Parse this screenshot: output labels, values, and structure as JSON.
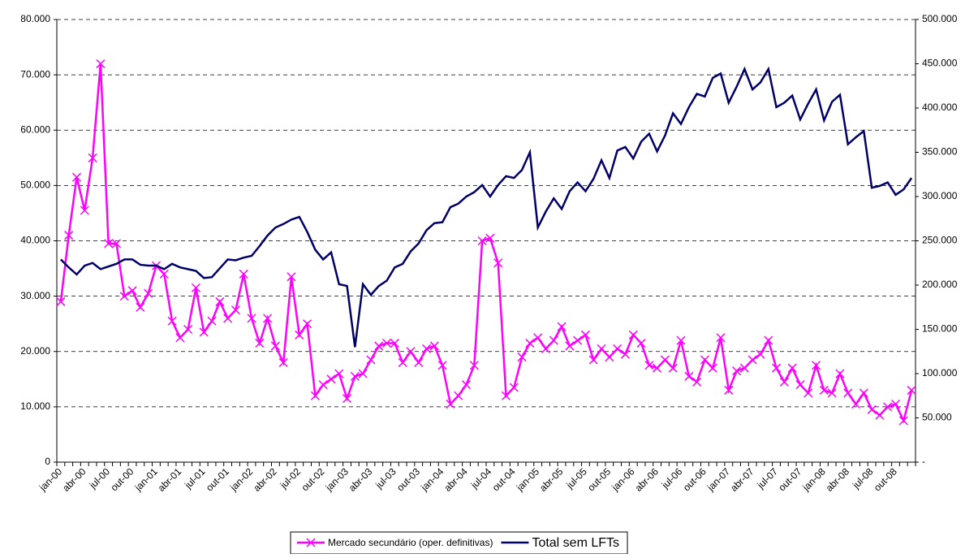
{
  "chart_data": {
    "type": "line",
    "categories": [
      "jan-00",
      null,
      null,
      "abr-00",
      null,
      null,
      "jul-00",
      null,
      null,
      "out-00",
      null,
      null,
      "jan-01",
      null,
      null,
      "abr-01",
      null,
      null,
      "jul-01",
      null,
      null,
      "out-01",
      null,
      null,
      "jan-02",
      null,
      null,
      "abr-02",
      null,
      null,
      "jul-02",
      null,
      null,
      "out-02",
      null,
      null,
      "jan-03",
      null,
      null,
      "abr-03",
      null,
      null,
      "jul-03",
      null,
      null,
      "out-03",
      null,
      null,
      "jan-04",
      null,
      null,
      "abr-04",
      null,
      null,
      "jul-04",
      null,
      null,
      "out-04",
      null,
      null,
      "jan-05",
      null,
      null,
      "abr-05",
      null,
      null,
      "jul-05",
      null,
      null,
      "out-05",
      null,
      null,
      "jan-06",
      null,
      null,
      "abr-06",
      null,
      null,
      "jul-06",
      null,
      null,
      "out-06",
      null,
      null,
      "jan-07",
      null,
      null,
      "abr-07",
      null,
      null,
      "jul-07",
      null,
      null,
      "out-07",
      null,
      null,
      "jan-08",
      null,
      null,
      "abr-08",
      null,
      null,
      "jul-08",
      null,
      null,
      "out-08",
      null,
      null
    ],
    "series": [
      {
        "name": "Mercado secundário (oper. definitivas)",
        "color": "#ff00ff",
        "marker": "x",
        "values": [
          29000,
          41000,
          51500,
          45500,
          55000,
          72000,
          39500,
          39500,
          30000,
          31000,
          28000,
          30500,
          35500,
          34000,
          25500,
          22500,
          24000,
          31500,
          23500,
          25500,
          29000,
          26000,
          27500,
          34000,
          26000,
          21500,
          26000,
          21000,
          18000,
          33500,
          23000,
          25000,
          12000,
          14000,
          15000,
          16000,
          11500,
          15500,
          16000,
          18500,
          21000,
          21500,
          21500,
          18000,
          20000,
          18000,
          20500,
          21000,
          17500,
          10500,
          12000,
          14000,
          17500,
          40000,
          40500,
          36000,
          12000,
          13500,
          19000,
          21500,
          22500,
          20500,
          22000,
          24500,
          21000,
          22000,
          23000,
          18500,
          20500,
          19000,
          20500,
          19500,
          23000,
          21500,
          17500,
          17000,
          18500,
          17000,
          22000,
          15500,
          14500,
          18500,
          17000,
          22500,
          13000,
          16500,
          17000,
          18500,
          19500,
          22000,
          17000,
          14500,
          17000,
          14000,
          12500,
          17500,
          13000,
          12500,
          16000,
          12500,
          10500,
          12500,
          9500,
          8500,
          10000,
          10500,
          7500,
          13000
        ]
      },
      {
        "name": "Total sem LFTs",
        "color": "#000066",
        "axis": "y2",
        "values": [
          229000,
          220000,
          212000,
          222000,
          225000,
          218000,
          221000,
          224000,
          229000,
          229000,
          223000,
          222000,
          222000,
          218000,
          224000,
          220000,
          218000,
          216000,
          208000,
          209000,
          219000,
          229000,
          228000,
          231000,
          233000,
          244000,
          256000,
          265000,
          269000,
          274000,
          277000,
          260000,
          240000,
          229000,
          237000,
          201000,
          199000,
          130000,
          201000,
          189000,
          199000,
          205000,
          220000,
          224000,
          238000,
          247000,
          262000,
          270000,
          271000,
          288000,
          292000,
          300000,
          305000,
          313000,
          300000,
          313000,
          323000,
          321000,
          330000,
          350000,
          265000,
          283000,
          298000,
          286000,
          306000,
          316000,
          306000,
          320000,
          341000,
          321000,
          352000,
          356000,
          343000,
          362000,
          371000,
          351000,
          369000,
          394000,
          382000,
          401000,
          416000,
          413000,
          434000,
          439000,
          406000,
          424000,
          444000,
          421000,
          429000,
          444000,
          401000,
          406000,
          414000,
          387000,
          405000,
          421000,
          386000,
          407000,
          415000,
          359000,
          367000,
          374000,
          310000,
          312000,
          316000,
          302000,
          308000,
          321000
        ]
      }
    ],
    "ylim": [
      0,
      80000
    ],
    "yticks": [
      0,
      {
        "value": 10000,
        "label": "10.000"
      },
      {
        "value": 20000,
        "label": "20.000"
      },
      {
        "value": 30000,
        "label": "30.000"
      },
      {
        "value": 40000,
        "label": "40.000"
      },
      {
        "value": 50000,
        "label": "50.000"
      },
      {
        "value": 60000,
        "label": "60.000"
      },
      {
        "value": 70000,
        "label": "70.000"
      },
      {
        "value": 80000,
        "label": "80.000"
      }
    ],
    "y2lim": [
      0,
      500000
    ],
    "y2ticks": [
      {
        "value": 0,
        "label": "-"
      },
      {
        "value": 50000,
        "label": "50.000"
      },
      {
        "value": 100000,
        "label": "100.000"
      },
      {
        "value": 150000,
        "label": "150.000"
      },
      {
        "value": 200000,
        "label": "200.000"
      },
      {
        "value": 250000,
        "label": "250.000"
      },
      {
        "value": 300000,
        "label": "300.000"
      },
      {
        "value": 350000,
        "label": "350.000"
      },
      {
        "value": 400000,
        "label": "400.000"
      },
      {
        "value": 450000,
        "label": "450.000"
      },
      {
        "value": 500000,
        "label": "500.000"
      }
    ],
    "grid": true,
    "legend": "bottom"
  }
}
